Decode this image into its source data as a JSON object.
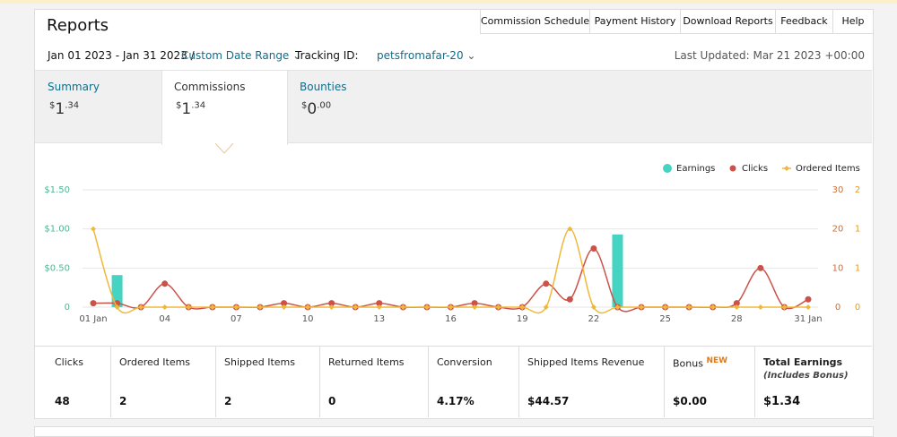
{
  "header": {
    "title": "Reports",
    "nav": [
      "Commission Schedule",
      "Payment History",
      "Download Reports",
      "Feedback",
      "Help"
    ]
  },
  "filters": {
    "date_range": "Jan 01 2023 - Jan 31 2023 /",
    "range_type": "Custom Date Range",
    "tracking_label": "Tracking ID:",
    "tracking_id": "petsfromafar-20",
    "last_updated": "Last Updated: Mar 21 2023 +00:00"
  },
  "tabs": [
    {
      "label": "Summary",
      "currency": "$",
      "whole": "1",
      "cents": ".34"
    },
    {
      "label": "Commissions",
      "currency": "$",
      "whole": "1",
      "cents": ".34"
    },
    {
      "label": "Bounties",
      "currency": "$",
      "whole": "0",
      "cents": ".00"
    }
  ],
  "chart_data": {
    "type": "combo",
    "categories": [
      "01 Jan",
      null,
      null,
      "04",
      null,
      null,
      "07",
      null,
      null,
      "10",
      null,
      null,
      "13",
      null,
      null,
      "16",
      null,
      null,
      "19",
      null,
      null,
      "22",
      null,
      null,
      "25",
      null,
      null,
      "28",
      null,
      null,
      "31 Jan"
    ],
    "series": [
      {
        "name": "Earnings",
        "type": "bar",
        "axis": "y",
        "color": "#45d4c1",
        "values": [
          0,
          0.41,
          0,
          0,
          0,
          0,
          0,
          0,
          0,
          0,
          0,
          0,
          0,
          0,
          0,
          0,
          0,
          0,
          0,
          0,
          0,
          0,
          0.93,
          0,
          0,
          0,
          0,
          0,
          0,
          0,
          0
        ]
      },
      {
        "name": "Clicks",
        "type": "line",
        "axis": "y2",
        "color": "#cc5249",
        "values": [
          1,
          1,
          0,
          6,
          0,
          0,
          0,
          0,
          1,
          0,
          1,
          0,
          1,
          0,
          0,
          0,
          1,
          0,
          0,
          6,
          2,
          15,
          0,
          0,
          0,
          0,
          0,
          1,
          10,
          0,
          2
        ]
      },
      {
        "name": "Ordered Items",
        "type": "line",
        "axis": "y3",
        "color": "#f0b83a",
        "values": [
          1,
          0,
          0,
          0,
          0,
          0,
          0,
          0,
          0,
          0,
          0,
          0,
          0,
          0,
          0,
          0,
          0,
          0,
          0,
          0,
          1,
          0,
          0,
          0,
          0,
          0,
          0,
          0,
          0,
          0,
          0
        ]
      }
    ],
    "ylim": [
      0,
      1.5
    ],
    "yticks": [
      0,
      {
        "value": 0.5,
        "label": "$0.50"
      },
      {
        "value": 1,
        "label": "$1.00"
      },
      {
        "value": 1.5,
        "label": "$1.50"
      }
    ],
    "y2lim": [
      0,
      30
    ],
    "y2ticks": [
      0,
      10,
      20,
      30
    ],
    "y3lim": [
      0,
      1.5
    ],
    "y3ticks": [
      0,
      {
        "value": 0.5,
        "label": "1"
      },
      1,
      {
        "value": 1.5,
        "label": "2"
      }
    ],
    "grid": true,
    "legend": "top-right"
  },
  "totals": [
    {
      "label": "Clicks",
      "value": "48"
    },
    {
      "label": "Ordered Items",
      "value": "2"
    },
    {
      "label": "Shipped Items",
      "value": "2"
    },
    {
      "label": "Returned Items",
      "value": "0"
    },
    {
      "label": "Conversion",
      "value": "4.17%"
    },
    {
      "label": "Shipped Items Revenue",
      "value": "$44.57"
    },
    {
      "label": "Bonus",
      "badge": "NEW",
      "value": "$0.00"
    },
    {
      "label": "Total Earnings",
      "sublabel": "(Includes Bonus)",
      "value": "$1.34"
    }
  ]
}
